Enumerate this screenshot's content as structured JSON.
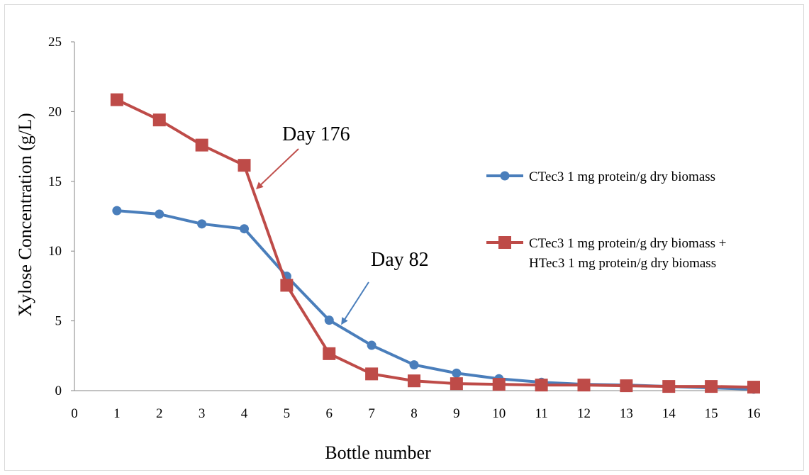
{
  "chart_data": {
    "type": "line",
    "xlabel": "Bottle number",
    "ylabel": "Xylose Concentration (g/L)",
    "xlim": [
      0,
      16
    ],
    "ylim": [
      0,
      25
    ],
    "x_ticks": [
      "0",
      "1",
      "2",
      "3",
      "4",
      "5",
      "6",
      "7",
      "8",
      "9",
      "10",
      "11",
      "12",
      "13",
      "14",
      "15",
      "16"
    ],
    "y_ticks": [
      "0",
      "5",
      "10",
      "15",
      "20",
      "25"
    ],
    "grid": false,
    "legend_position": "right",
    "x": [
      1,
      2,
      3,
      4,
      5,
      6,
      7,
      8,
      9,
      10,
      11,
      12,
      13,
      14,
      15,
      16
    ],
    "series": [
      {
        "name": "CTec3 1 mg protein/g dry biomass",
        "color": "#4a7ebb",
        "marker": "circle",
        "values": [
          12.9,
          12.65,
          11.95,
          11.6,
          8.2,
          5.05,
          3.25,
          1.85,
          1.25,
          0.85,
          0.6,
          0.45,
          0.4,
          0.3,
          0.2,
          0.1
        ]
      },
      {
        "name": "CTec3 1 mg protein/g dry biomass + HTec3 1 mg protein/g dry biomass",
        "legend_lines": [
          "CTec3 1 mg protein/g dry biomass +",
          "HTec3 1 mg protein/g dry biomass"
        ],
        "color": "#be4b48",
        "marker": "square",
        "values": [
          20.85,
          19.4,
          17.6,
          16.15,
          7.55,
          2.65,
          1.2,
          0.7,
          0.5,
          0.45,
          0.4,
          0.4,
          0.35,
          0.3,
          0.3,
          0.25
        ]
      }
    ],
    "annotations": [
      {
        "text": "Day 176",
        "color": "#c0504d",
        "points_to": {
          "series": 1,
          "x": 4.3,
          "y": 14.5
        }
      },
      {
        "text": "Day 82",
        "color": "#4a7ebb",
        "points_to": {
          "series": 0,
          "x": 6.3,
          "y": 4.8
        }
      }
    ]
  }
}
